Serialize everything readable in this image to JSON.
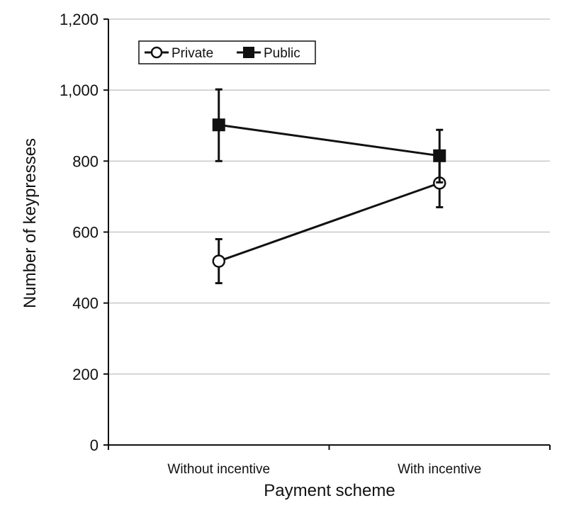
{
  "chart_data": {
    "type": "line",
    "categories": [
      "Without incentive",
      "With incentive"
    ],
    "xlabel": "Payment scheme",
    "ylabel": "Number of keypresses",
    "ylim": [
      0,
      1200
    ],
    "yticks": [
      0,
      200,
      400,
      600,
      800,
      1000,
      1200
    ],
    "ytick_labels": [
      "0",
      "200",
      "400",
      "600",
      "800",
      "1,000",
      "1,200"
    ],
    "grid": "horizontal",
    "legend_placement": "top-left",
    "series": [
      {
        "name": "Private",
        "marker": "open-circle",
        "values": [
          518,
          738
        ],
        "error_low": [
          456,
          670
        ],
        "error_high": [
          580,
          806
        ]
      },
      {
        "name": "Public",
        "marker": "filled-square",
        "values": [
          902,
          815
        ],
        "error_low": [
          800,
          740
        ],
        "error_high": [
          1002,
          888
        ]
      }
    ],
    "colors": {
      "line": "#111111",
      "grid": "#c8c8c8",
      "axis": "#111111"
    }
  }
}
